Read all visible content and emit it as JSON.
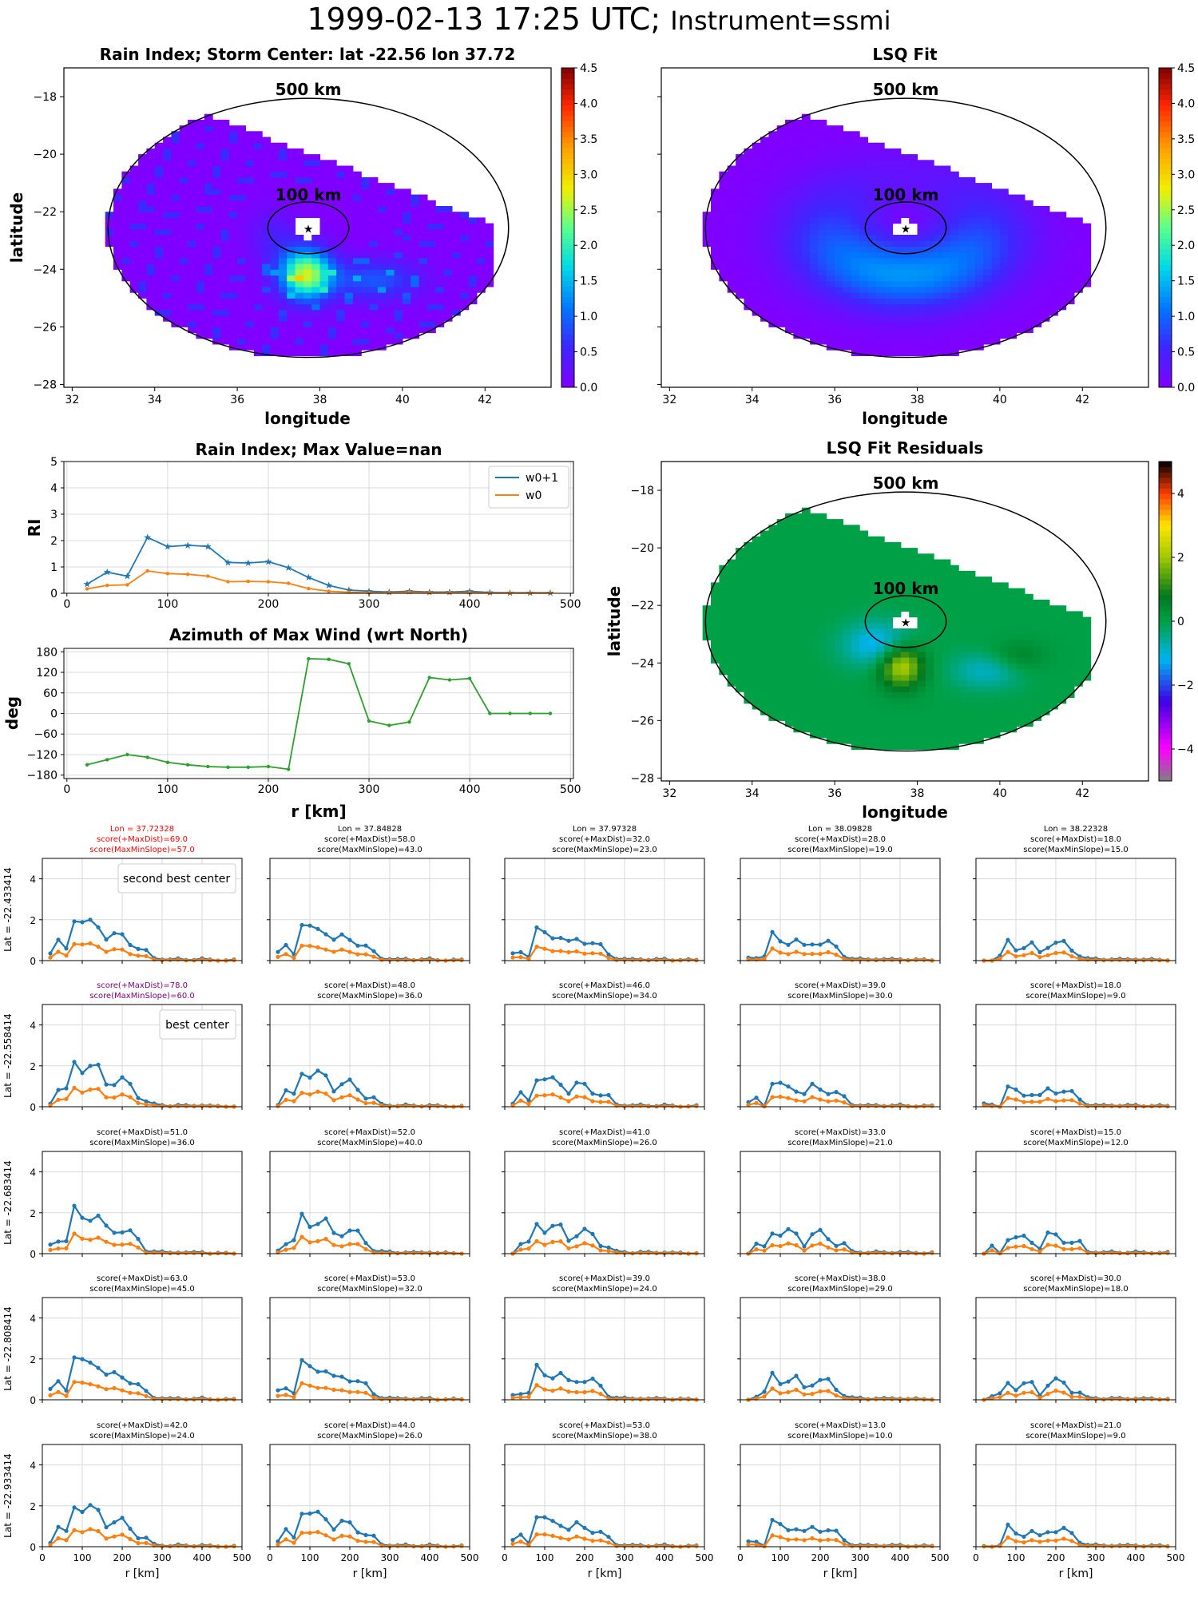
{
  "title": {
    "main": "1999-02-13 17:25 UTC;",
    "suffix": "Instrument=ssmi"
  },
  "map_rain": {
    "title": "Rain Index; Storm Center: lat -22.56 lon 37.72",
    "xlabel": "longitude",
    "ylabel": "latitude",
    "ring_outer": "500 km",
    "ring_inner": "100 km"
  },
  "map_fit": {
    "title": "LSQ Fit",
    "ring_outer": "500 km",
    "ring_inner": "100 km"
  },
  "map_resid": {
    "title": "LSQ Fit Residuals",
    "xlabel": "longitude",
    "ylabel": "latitude",
    "ring_outer": "500 km",
    "ring_inner": "100 km"
  },
  "map_ticks": {
    "lon": [
      "32",
      "34",
      "36",
      "38",
      "40",
      "42"
    ],
    "lat": [
      "−18",
      "−20",
      "−22",
      "−24",
      "−26",
      "−28"
    ]
  },
  "colorbar_rain": {
    "ticks": [
      "0.0",
      "0.5",
      "1.0",
      "1.5",
      "2.0",
      "2.5",
      "3.0",
      "3.5",
      "4.0",
      "4.5"
    ]
  },
  "colorbar_resid": {
    "ticks": [
      "4",
      "2",
      "0",
      "−2",
      "−4"
    ]
  },
  "chart_data": [
    {
      "type": "line",
      "title": "Rain Index; Max Value=nan",
      "ylabel": "RI",
      "xlim": [
        0,
        500
      ],
      "ylim": [
        0,
        5
      ],
      "x": [
        20,
        40,
        60,
        80,
        100,
        120,
        140,
        160,
        180,
        200,
        220,
        240,
        260,
        280,
        300,
        320,
        340,
        360,
        380,
        400,
        420,
        440,
        460,
        480
      ],
      "series": [
        {
          "name": "w0+1",
          "values": [
            0.35,
            0.8,
            0.65,
            2.12,
            1.77,
            1.82,
            1.78,
            1.17,
            1.15,
            1.2,
            0.97,
            0.6,
            0.3,
            0.12,
            0.08,
            0.05,
            0.08,
            0.05,
            0.05,
            0.08,
            0.03,
            0.02,
            0.02,
            0.02
          ],
          "color": "#1f77b4"
        },
        {
          "name": "w0",
          "values": [
            0.17,
            0.3,
            0.32,
            0.85,
            0.75,
            0.72,
            0.65,
            0.44,
            0.45,
            0.44,
            0.38,
            0.18,
            0.08,
            0.04,
            0.02,
            0.02,
            0.04,
            0.02,
            0.02,
            0.03,
            0.01,
            0.01,
            0.01,
            0.01
          ],
          "color": "#ff7f0e"
        }
      ],
      "legend": "top-right",
      "grid": true
    },
    {
      "type": "line",
      "title": "Azimuth of Max Wind (wrt North)",
      "ylabel": "deg",
      "xlabel": "r [km]",
      "xlim": [
        0,
        500
      ],
      "ylim": [
        -180,
        180
      ],
      "yticks": [
        "180",
        "120",
        "60",
        "0",
        "−60",
        "−120",
        "−180"
      ],
      "x": [
        20,
        40,
        60,
        80,
        100,
        120,
        140,
        160,
        180,
        200,
        220,
        240,
        260,
        280,
        300,
        320,
        340,
        360,
        380,
        400,
        420,
        440,
        460,
        480
      ],
      "series": [
        {
          "values": [
            -150,
            -135,
            -120,
            -128,
            -143,
            -150,
            -155,
            -157,
            -157,
            -155,
            -163,
            160,
            158,
            145,
            -22,
            -35,
            -25,
            105,
            98,
            102,
            0,
            0,
            0,
            0
          ],
          "color": "#2ca02c"
        }
      ],
      "grid": true
    },
    {
      "type": "line",
      "subplots": "5x5 grid",
      "xlabel": "r [km]",
      "xlim": [
        0,
        500
      ],
      "ylim": [
        0,
        5
      ],
      "xticks": [
        "0",
        "100",
        "200",
        "300",
        "400",
        "500"
      ],
      "yticks": [
        "0",
        "2",
        "4"
      ],
      "row_labels": [
        "Lat = -22.433414",
        "Lat = -22.558414",
        "Lat = -22.683414",
        "Lat = -22.808414",
        "Lat = -22.933414"
      ],
      "col_lons": [
        "Lon = 37.72328",
        "Lon = 37.84828",
        "Lon = 37.97328",
        "Lon = 38.09828",
        "Lon = 38.22328"
      ],
      "scores": [
        [
          [
            "score(+MaxDist)=69.0",
            "score(MaxMinSlope)=57.0"
          ],
          [
            "score(+MaxDist)=58.0",
            "score(MaxMinSlope)=43.0"
          ],
          [
            "score(+MaxDist)=32.0",
            "score(MaxMinSlope)=23.0"
          ],
          [
            "score(+MaxDist)=28.0",
            "score(MaxMinSlope)=19.0"
          ],
          [
            "score(+MaxDist)=18.0",
            "score(MaxMinSlope)=15.0"
          ]
        ],
        [
          [
            "score(+MaxDist)=78.0",
            "score(MaxMinSlope)=60.0"
          ],
          [
            "score(+MaxDist)=48.0",
            "score(MaxMinSlope)=36.0"
          ],
          [
            "score(+MaxDist)=46.0",
            "score(MaxMinSlope)=34.0"
          ],
          [
            "score(+MaxDist)=39.0",
            "score(MaxMinSlope)=30.0"
          ],
          [
            "score(+MaxDist)=18.0",
            "score(MaxMinSlope)=9.0"
          ]
        ],
        [
          [
            "score(+MaxDist)=51.0",
            "score(MaxMinSlope)=36.0"
          ],
          [
            "score(+MaxDist)=52.0",
            "score(MaxMinSlope)=40.0"
          ],
          [
            "score(+MaxDist)=41.0",
            "score(MaxMinSlope)=26.0"
          ],
          [
            "score(+MaxDist)=33.0",
            "score(MaxMinSlope)=21.0"
          ],
          [
            "score(+MaxDist)=15.0",
            "score(MaxMinSlope)=12.0"
          ]
        ],
        [
          [
            "score(+MaxDist)=63.0",
            "score(MaxMinSlope)=45.0"
          ],
          [
            "score(+MaxDist)=53.0",
            "score(MaxMinSlope)=32.0"
          ],
          [
            "score(+MaxDist)=39.0",
            "score(MaxMinSlope)=24.0"
          ],
          [
            "score(+MaxDist)=38.0",
            "score(MaxMinSlope)=29.0"
          ],
          [
            "score(+MaxDist)=30.0",
            "score(MaxMinSlope)=18.0"
          ]
        ],
        [
          [
            "score(+MaxDist)=42.0",
            "score(MaxMinSlope)=24.0"
          ],
          [
            "score(+MaxDist)=44.0",
            "score(MaxMinSlope)=26.0"
          ],
          [
            "score(+MaxDist)=53.0",
            "score(MaxMinSlope)=38.0"
          ],
          [
            "score(+MaxDist)=13.0",
            "score(MaxMinSlope)=10.0"
          ],
          [
            "score(+MaxDist)=21.0",
            "score(MaxMinSlope)=9.0"
          ]
        ]
      ],
      "annotations": {
        "second_best": "second best center",
        "best": "best center"
      },
      "highlight_colors": {
        "second_best": "#ff0000",
        "best": "#800080"
      }
    }
  ]
}
